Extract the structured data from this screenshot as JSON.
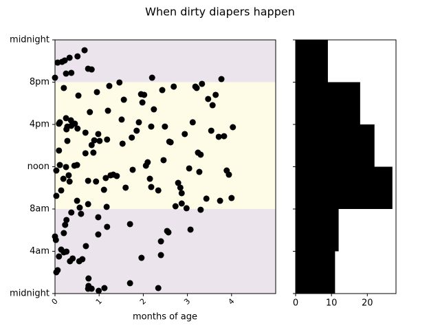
{
  "chart_data": [
    {
      "type": "scatter",
      "title": "When dirty diapers happen",
      "xlabel": "months of age",
      "xlim": [
        0,
        5
      ],
      "xticks": [
        0,
        1,
        2,
        3,
        4
      ],
      "ylim": [
        0,
        24
      ],
      "yticks": [
        {
          "value": 0,
          "label": "midnight"
        },
        {
          "value": 4,
          "label": "4am"
        },
        {
          "value": 8,
          "label": "8am"
        },
        {
          "value": 12,
          "label": "noon"
        },
        {
          "value": 16,
          "label": "4pm"
        },
        {
          "value": 20,
          "label": "8pm"
        },
        {
          "value": 24,
          "label": "midnight"
        }
      ],
      "bands": [
        {
          "range": [
            0,
            8
          ],
          "color": "#ebe4ed"
        },
        {
          "range": [
            8,
            20
          ],
          "color": "#fefbe7"
        },
        {
          "range": [
            20,
            24
          ],
          "color": "#ebe4ed"
        }
      ],
      "series": [
        {
          "color": "#000000",
          "x": [
            0.67,
            0.06,
            0.16,
            0.22,
            0.33,
            0.51,
            0.25,
            0.37,
            0.0,
            0.75,
            0.83,
            2.2,
            3.77,
            1.46,
            1.23,
            0.2,
            0.53,
            0.95,
            1.95,
            2.02,
            2.43,
            2.69,
            3.18,
            3.21,
            3.33,
            3.64,
            3.47,
            3.57,
            1.56,
            1.2,
            1.98,
            2.24,
            0.79,
            1.51,
            0.25,
            0.36,
            0.11,
            0.09,
            0.45,
            0.28,
            0.37,
            0.51,
            0.26,
            0.69,
            0.98,
            1.9,
            1.85,
            2.49,
            2.18,
            3.12,
            2.94,
            3.54,
            3.71,
            3.83,
            4.03,
            0.28,
            0.89,
            0.83,
            1.18,
            1.01,
            1.53,
            1.74,
            0.69,
            0.87,
            0.09,
            2.62,
            2.59,
            3.24,
            3.3,
            2.46,
            0.44,
            0.11,
            0.25,
            0.5,
            0.03,
            0.31,
            2.06,
            2.1,
            1.76,
            3.04,
            3.27,
            3.89,
            3.94,
            1.32,
            1.26,
            1.4,
            1.15,
            0.75,
            0.19,
            0.33,
            2.15,
            2.18,
            2.34,
            1.6,
            1.11,
            0.93,
            0.14,
            0.03,
            2.79,
            2.84,
            2.87,
            3.43,
            3.74,
            4.0,
            0.5,
            2.87,
            0.56,
            2.73,
            2.98,
            3.3,
            0.75,
            1.17,
            0.37,
            0.23,
            0.26,
            0.2,
            0.59,
            0.98,
            1.7,
            1.18,
            3.07,
            2.54,
            2.57,
            2.4,
            0.7,
            0.0,
            0.02,
            0.98,
            0.14,
            0.26,
            0.2,
            0.09,
            0.4,
            0.55,
            0.62,
            0.34,
            1.96,
            2.4,
            0.06,
            0.03,
            0.76,
            0.76,
            0.75,
            0.83,
            0.99,
            1.12,
            1.7,
            2.34
          ],
          "y": [
            23.02,
            21.85,
            21.92,
            22.05,
            22.31,
            22.44,
            20.81,
            20.88,
            20.42,
            21.27,
            21.2,
            20.42,
            20.29,
            19.97,
            19.64,
            19.45,
            18.73,
            19.06,
            18.86,
            18.8,
            19.25,
            19.58,
            19.58,
            19.45,
            19.84,
            18.8,
            18.41,
            17.82,
            18.34,
            17.3,
            18.08,
            17.43,
            17.17,
            16.46,
            16.59,
            16.39,
            16.2,
            16.07,
            16.07,
            15.8,
            15.87,
            15.61,
            15.54,
            15.22,
            15.09,
            16.2,
            15.41,
            15.8,
            15.8,
            16.2,
            15.09,
            15.41,
            14.83,
            14.89,
            15.74,
            14.44,
            14.5,
            14.05,
            14.57,
            14.44,
            14.18,
            14.76,
            13.27,
            13.33,
            13.53,
            14.31,
            14.37,
            13.33,
            13.14,
            12.62,
            12.1,
            12.16,
            11.97,
            12.16,
            11.64,
            11.19,
            12.1,
            12.42,
            11.71,
            11.84,
            11.51,
            11.64,
            11.25,
            11.25,
            11.19,
            11.12,
            10.93,
            10.67,
            10.86,
            10.6,
            10.86,
            10.08,
            9.76,
            10.02,
            9.82,
            10.6,
            9.76,
            9.24,
            10.47,
            10.02,
            9.5,
            8.98,
            8.78,
            9.04,
            8.78,
            8.52,
            8.13,
            8.26,
            8.07,
            7.93,
            8.46,
            8.2,
            7.67,
            6.5,
            6.96,
            5.72,
            7.54,
            7.22,
            6.57,
            6.31,
            6.05,
            5.92,
            5.79,
            4.94,
            4.49,
            5.4,
            5.07,
            5.59,
            4.16,
            3.97,
            3.9,
            3.51,
            3.32,
            3.06,
            3.25,
            3.06,
            3.38,
            3.64,
            2.21,
            2.02,
            1.43,
            0.72,
            0.46,
            0.46,
            0.26,
            0.52,
            0.98,
            0.52
          ]
        }
      ]
    },
    {
      "type": "histogram",
      "orientation": "horizontal",
      "color": "#000000",
      "bins": [
        0,
        4,
        8,
        12,
        16,
        20,
        24
      ],
      "counts": [
        11,
        12,
        27,
        22,
        18,
        9
      ],
      "xlim": [
        0,
        28
      ],
      "xticks": [
        0,
        10,
        20
      ],
      "ylim": [
        0,
        24
      ],
      "yticks": [
        0,
        4,
        8,
        12,
        16,
        20,
        24
      ]
    }
  ]
}
